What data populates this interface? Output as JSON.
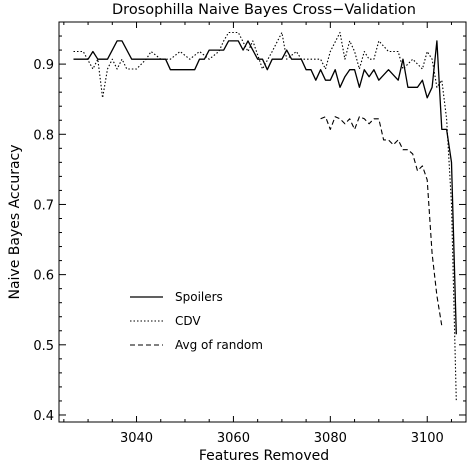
{
  "chart_data": {
    "type": "line",
    "title": "Drosophilla Naive Bayes Cross−Validation",
    "xlabel": "Features Removed",
    "ylabel": "Naive Bayes Accuracy",
    "xlim": [
      3024,
      3108
    ],
    "ylim": [
      0.39,
      0.96
    ],
    "xticks": [
      3040,
      3060,
      3080,
      3100
    ],
    "yticks": [
      0.4,
      0.5,
      0.6,
      0.7,
      0.8,
      0.9
    ],
    "grid": false,
    "legend_position": "lower-left",
    "series": [
      {
        "name": "Spoilers",
        "style": "solid",
        "points": [
          [
            3027,
            0.907
          ],
          [
            3030,
            0.907
          ],
          [
            3031,
            0.918
          ],
          [
            3032,
            0.907
          ],
          [
            3034,
            0.907
          ],
          [
            3036,
            0.933
          ],
          [
            3037,
            0.933
          ],
          [
            3039,
            0.907
          ],
          [
            3045,
            0.907
          ],
          [
            3046,
            0.907
          ],
          [
            3047,
            0.892
          ],
          [
            3052,
            0.892
          ],
          [
            3053,
            0.907
          ],
          [
            3054,
            0.907
          ],
          [
            3055,
            0.92
          ],
          [
            3058,
            0.92
          ],
          [
            3059,
            0.933
          ],
          [
            3061,
            0.933
          ],
          [
            3062,
            0.92
          ],
          [
            3063,
            0.933
          ],
          [
            3064,
            0.92
          ],
          [
            3065,
            0.907
          ],
          [
            3066,
            0.907
          ],
          [
            3067,
            0.892
          ],
          [
            3068,
            0.907
          ],
          [
            3070,
            0.907
          ],
          [
            3071,
            0.92
          ],
          [
            3072,
            0.907
          ],
          [
            3074,
            0.907
          ],
          [
            3075,
            0.892
          ],
          [
            3076,
            0.892
          ],
          [
            3077,
            0.877
          ],
          [
            3078,
            0.892
          ],
          [
            3079,
            0.877
          ],
          [
            3080,
            0.877
          ],
          [
            3081,
            0.892
          ],
          [
            3082,
            0.867
          ],
          [
            3083,
            0.882
          ],
          [
            3084,
            0.892
          ],
          [
            3085,
            0.892
          ],
          [
            3086,
            0.867
          ],
          [
            3087,
            0.892
          ],
          [
            3088,
            0.882
          ],
          [
            3089,
            0.892
          ],
          [
            3090,
            0.877
          ],
          [
            3092,
            0.892
          ],
          [
            3094,
            0.877
          ],
          [
            3095,
            0.907
          ],
          [
            3096,
            0.867
          ],
          [
            3098,
            0.867
          ],
          [
            3099,
            0.877
          ],
          [
            3100,
            0.852
          ],
          [
            3101,
            0.867
          ],
          [
            3102,
            0.933
          ],
          [
            3103,
            0.807
          ],
          [
            3104,
            0.807
          ],
          [
            3105,
            0.76
          ],
          [
            3106,
            0.515
          ]
        ]
      },
      {
        "name": "CDV",
        "style": "dotted",
        "points": [
          [
            3027,
            0.918
          ],
          [
            3029,
            0.918
          ],
          [
            3031,
            0.893
          ],
          [
            3032,
            0.907
          ],
          [
            3033,
            0.852
          ],
          [
            3034,
            0.893
          ],
          [
            3035,
            0.907
          ],
          [
            3036,
            0.893
          ],
          [
            3037,
            0.907
          ],
          [
            3038,
            0.893
          ],
          [
            3040,
            0.893
          ],
          [
            3042,
            0.907
          ],
          [
            3043,
            0.918
          ],
          [
            3045,
            0.907
          ],
          [
            3047,
            0.907
          ],
          [
            3049,
            0.918
          ],
          [
            3051,
            0.907
          ],
          [
            3053,
            0.918
          ],
          [
            3055,
            0.907
          ],
          [
            3057,
            0.918
          ],
          [
            3058,
            0.933
          ],
          [
            3059,
            0.945
          ],
          [
            3060,
            0.945
          ],
          [
            3061,
            0.945
          ],
          [
            3063,
            0.918
          ],
          [
            3064,
            0.933
          ],
          [
            3066,
            0.893
          ],
          [
            3068,
            0.918
          ],
          [
            3070,
            0.945
          ],
          [
            3071,
            0.907
          ],
          [
            3073,
            0.918
          ],
          [
            3074,
            0.907
          ],
          [
            3075,
            0.907
          ],
          [
            3076,
            0.907
          ],
          [
            3078,
            0.907
          ],
          [
            3079,
            0.893
          ],
          [
            3080,
            0.918
          ],
          [
            3082,
            0.945
          ],
          [
            3083,
            0.907
          ],
          [
            3084,
            0.933
          ],
          [
            3085,
            0.918
          ],
          [
            3086,
            0.893
          ],
          [
            3087,
            0.918
          ],
          [
            3088,
            0.907
          ],
          [
            3089,
            0.907
          ],
          [
            3090,
            0.933
          ],
          [
            3092,
            0.918
          ],
          [
            3094,
            0.918
          ],
          [
            3095,
            0.893
          ],
          [
            3097,
            0.907
          ],
          [
            3099,
            0.893
          ],
          [
            3100,
            0.918
          ],
          [
            3101,
            0.907
          ],
          [
            3102,
            0.867
          ],
          [
            3103,
            0.877
          ],
          [
            3104,
            0.822
          ],
          [
            3105,
            0.7
          ],
          [
            3106,
            0.42
          ]
        ]
      },
      {
        "name": "Avg of random",
        "style": "dashed",
        "points": [
          [
            3078,
            0.822
          ],
          [
            3079,
            0.825
          ],
          [
            3080,
            0.807
          ],
          [
            3081,
            0.825
          ],
          [
            3082,
            0.822
          ],
          [
            3083,
            0.815
          ],
          [
            3084,
            0.822
          ],
          [
            3085,
            0.807
          ],
          [
            3086,
            0.825
          ],
          [
            3087,
            0.822
          ],
          [
            3088,
            0.815
          ],
          [
            3089,
            0.822
          ],
          [
            3090,
            0.822
          ],
          [
            3091,
            0.792
          ],
          [
            3092,
            0.792
          ],
          [
            3093,
            0.785
          ],
          [
            3094,
            0.792
          ],
          [
            3095,
            0.778
          ],
          [
            3096,
            0.778
          ],
          [
            3097,
            0.772
          ],
          [
            3098,
            0.748
          ],
          [
            3099,
            0.755
          ],
          [
            3100,
            0.735
          ],
          [
            3101,
            0.63
          ],
          [
            3102,
            0.57
          ],
          [
            3103,
            0.527
          ]
        ]
      }
    ]
  }
}
